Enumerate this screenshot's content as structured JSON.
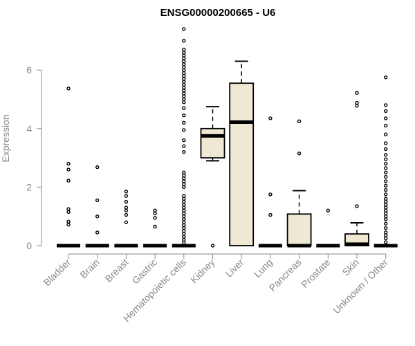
{
  "chart_data": {
    "type": "box",
    "title": "ENSG00000200665 - U6",
    "ylabel": "Expression",
    "xlabel": "",
    "ylim": [
      0,
      7.5
    ],
    "yticks": [
      0,
      2,
      4,
      6
    ],
    "grid": false,
    "colors": {
      "box_fill": "#efe8d2",
      "stroke": "#000000",
      "axis": "#888888"
    },
    "categories": [
      "Bladder",
      "Brain",
      "Breast",
      "Gastric",
      "Hematopoietic cells",
      "Kidney",
      "Liver",
      "Lung",
      "Pancreas",
      "Prostate",
      "Skin",
      "Unknown / Other"
    ],
    "boxes": [
      {
        "category": "Bladder",
        "q1": 0,
        "median": 0,
        "q3": 0,
        "whisker_low": 0,
        "whisker_high": 0,
        "outliers": [
          5.37,
          2.8,
          2.6,
          2.22,
          1.25,
          1.15,
          0.82,
          0.72
        ]
      },
      {
        "category": "Brain",
        "q1": 0,
        "median": 0,
        "q3": 0,
        "whisker_low": 0,
        "whisker_high": 0,
        "outliers": [
          2.68,
          1.55,
          1.0,
          0.45
        ]
      },
      {
        "category": "Breast",
        "q1": 0,
        "median": 0,
        "q3": 0,
        "whisker_low": 0,
        "whisker_high": 0,
        "outliers": [
          1.85,
          1.7,
          1.5,
          1.3,
          1.2,
          1.05,
          0.8
        ]
      },
      {
        "category": "Gastric",
        "q1": 0,
        "median": 0,
        "q3": 0,
        "whisker_low": 0,
        "whisker_high": 0,
        "outliers": [
          1.2,
          1.1,
          0.95,
          0.65
        ]
      },
      {
        "category": "Hematopoietic cells",
        "q1": 0,
        "median": 0,
        "q3": 0,
        "whisker_low": 0,
        "whisker_high": 0,
        "outliers": [
          7.4,
          7.0,
          6.7,
          6.6,
          6.5,
          6.4,
          6.3,
          6.2,
          6.1,
          6.0,
          5.9,
          5.8,
          5.7,
          5.6,
          5.5,
          5.4,
          5.3,
          5.2,
          5.1,
          5.0,
          4.9,
          4.7,
          4.45,
          4.2,
          3.95,
          3.6,
          3.4,
          3.2,
          2.5,
          2.4,
          2.3,
          2.2,
          2.1,
          2.0,
          1.7,
          1.6,
          1.5,
          1.4,
          1.3,
          1.2,
          1.1,
          1.0,
          0.9,
          0.8,
          0.7,
          0.6,
          0.5,
          0.4,
          0.3,
          0.2,
          0.1
        ]
      },
      {
        "category": "Kidney",
        "q1": 3.0,
        "median": 3.75,
        "q3": 4.0,
        "whisker_low": 2.9,
        "whisker_high": 4.75,
        "outliers": [
          0
        ]
      },
      {
        "category": "Liver",
        "q1": 0,
        "median": 4.22,
        "q3": 5.55,
        "whisker_low": 0,
        "whisker_high": 6.3,
        "outliers": []
      },
      {
        "category": "Lung",
        "q1": 0,
        "median": 0,
        "q3": 0,
        "whisker_low": 0,
        "whisker_high": 0,
        "outliers": [
          4.35,
          1.75,
          1.05
        ]
      },
      {
        "category": "Pancreas",
        "q1": 0,
        "median": 0,
        "q3": 1.08,
        "whisker_low": 0,
        "whisker_high": 1.88,
        "outliers": [
          4.25,
          3.15
        ]
      },
      {
        "category": "Prostate",
        "q1": 0,
        "median": 0,
        "q3": 0,
        "whisker_low": 0,
        "whisker_high": 0,
        "outliers": [
          1.2
        ]
      },
      {
        "category": "Skin",
        "q1": 0,
        "median": 0.05,
        "q3": 0.4,
        "whisker_low": 0,
        "whisker_high": 0.78,
        "outliers": [
          5.22,
          4.88,
          4.78,
          1.35
        ]
      },
      {
        "category": "Unknown / Other",
        "q1": 0,
        "median": 0,
        "q3": 0,
        "whisker_low": 0,
        "whisker_high": 0,
        "outliers": [
          5.75,
          4.8,
          4.6,
          4.35,
          4.1,
          3.8,
          3.5,
          3.3,
          3.1,
          2.95,
          2.8,
          2.65,
          2.5,
          2.35,
          2.2,
          2.05,
          1.9,
          1.75,
          1.6,
          1.5,
          1.4,
          1.3,
          1.2,
          1.1,
          1.0,
          0.9,
          0.75,
          0.6,
          0.45,
          0.35,
          0.25,
          0.12
        ]
      }
    ]
  }
}
